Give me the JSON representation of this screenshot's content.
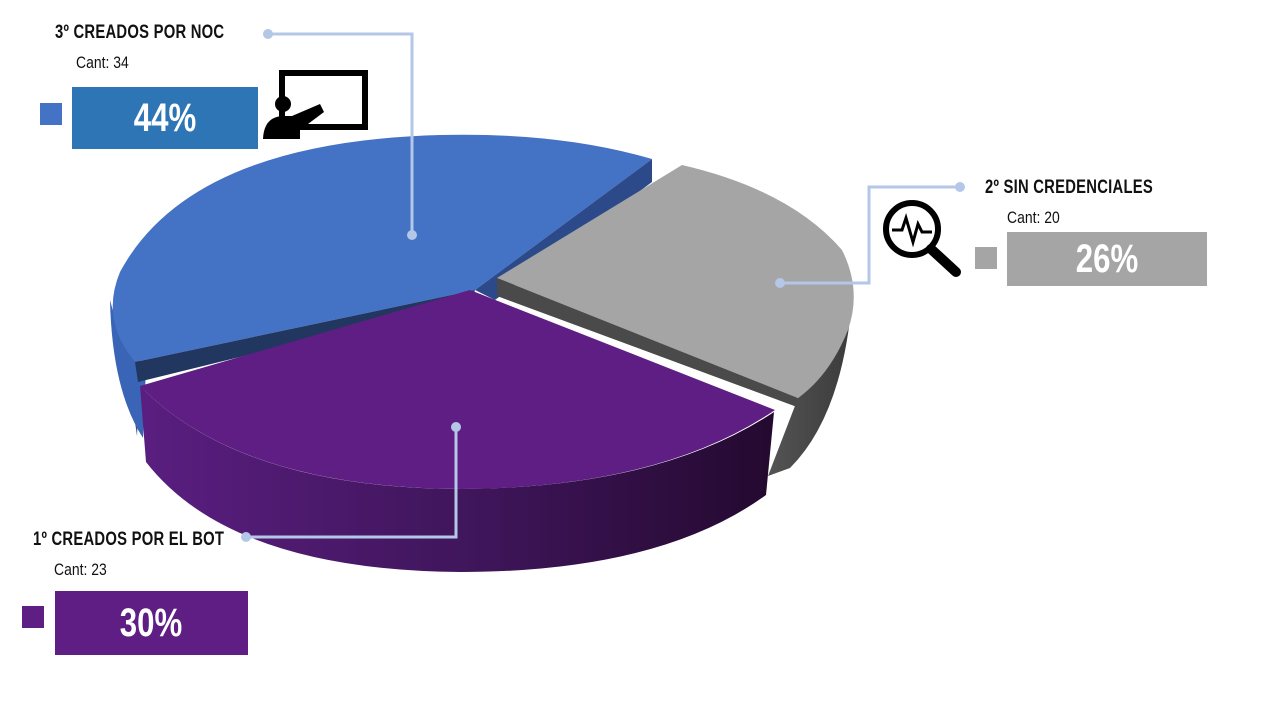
{
  "chart_data": {
    "type": "pie",
    "title": "",
    "count_prefix": "Cant:",
    "slices": [
      {
        "label": "3º CREADOS POR NOC",
        "count": 34,
        "percent": "44%",
        "value": 44,
        "color": "#4472C4"
      },
      {
        "label": "2º SIN CREDENCIALES",
        "count": 20,
        "percent": "26%",
        "value": 26,
        "color": "#A5A5A5"
      },
      {
        "label": "1º CREADOS POR EL BOT",
        "count": 23,
        "percent": "30%",
        "value": 30,
        "color": "#5E1E84"
      }
    ]
  },
  "colors": {
    "blue_box": "#2E75B6",
    "gray_box": "#A5A5A5",
    "purple_box": "#5E1E84",
    "leader_line": "#B4C7E7"
  },
  "icons": {
    "noc": "presentation-board-icon",
    "credenciales": "magnifier-pulse-icon"
  }
}
